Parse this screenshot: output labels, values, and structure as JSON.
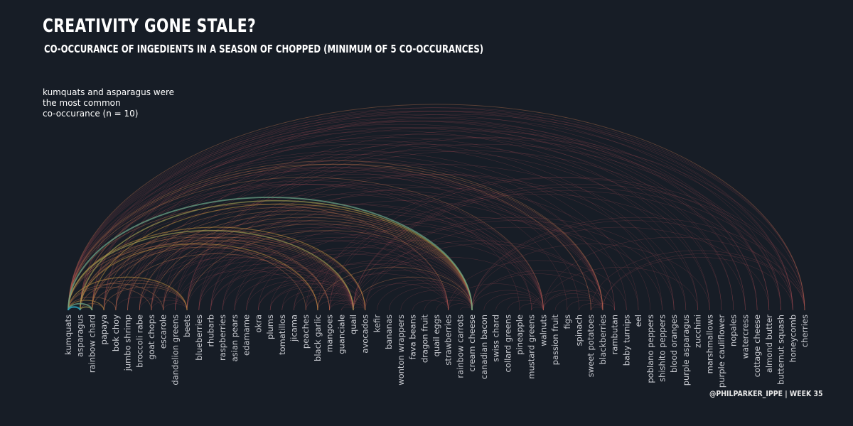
{
  "title": "CREATIVITY GONE STALE?",
  "subtitle": "CO-OCCURANCE OF INGEDIENTS IN A SEASON OF CHOPPED (MINIMUM OF 5 CO-OCCURANCES)",
  "annotation": [
    "kumquats and asparagus were",
    "the most common",
    "co-occurance (n = 10)"
  ],
  "credit": "@PHILPARKER_IPPE  |  WEEK 35",
  "colors": {
    "background": "#171d26",
    "arc_low": "#b24c57",
    "arc_mid": "#c8a23a",
    "arc_high": "#2aa0b8"
  },
  "nodes": [
    "kumquats",
    "asparagus",
    "rainbow chard",
    "papaya",
    "bok choy",
    "jumbo shrimp",
    "broccoli rabe",
    "goat chops",
    "escarole",
    "dandelion greens",
    "beets",
    "blueberries",
    "rhubarb",
    "raspberries",
    "asian pears",
    "edamame",
    "okra",
    "plums",
    "tomatillos",
    "jicama",
    "peaches",
    "black garlic",
    "mangoes",
    "guanciale",
    "quail",
    "avocados",
    "kefir",
    "bananas",
    "wonton wrappers",
    "fava beans",
    "dragon fruit",
    "quail eggs",
    "strawberries",
    "rainbow carrots",
    "cream cheese",
    "canadian bacon",
    "swiss chard",
    "collard greens",
    "pineapple",
    "mustard greens",
    "walnuts",
    "passion fruit",
    "figs",
    "spinach",
    "sweet potatoes",
    "blackberries",
    "rambutan",
    "baby turnips",
    "eel",
    "poblano peppers",
    "shishito peppers",
    "blood oranges",
    "purple asparagus",
    "zucchini",
    "marshmallows",
    "purple cauliflower",
    "nopales",
    "watercress",
    "cottage cheese",
    "almond butter",
    "butternut squash",
    "honeycomb",
    "cherries"
  ],
  "links": [
    {
      "from": "kumquats",
      "to": "asparagus",
      "n": 10
    },
    {
      "from": "kumquats",
      "to": "rainbow chard",
      "n": 9
    },
    {
      "from": "kumquats",
      "to": "cream cheese",
      "n": 9
    },
    {
      "from": "asparagus",
      "to": "cream cheese",
      "n": 8
    },
    {
      "from": "kumquats",
      "to": "quail",
      "n": 8
    },
    {
      "from": "asparagus",
      "to": "rainbow chard",
      "n": 8
    },
    {
      "from": "kumquats",
      "to": "papaya",
      "n": 7
    },
    {
      "from": "kumquats",
      "to": "avocados",
      "n": 7
    },
    {
      "from": "asparagus",
      "to": "black garlic",
      "n": 7
    },
    {
      "from": "rainbow chard",
      "to": "cream cheese",
      "n": 7
    },
    {
      "from": "kumquats",
      "to": "beets",
      "n": 7
    },
    {
      "from": "kumquats",
      "to": "sweet potatoes",
      "n": 6
    },
    {
      "from": "kumquats",
      "to": "blackberries",
      "n": 6
    },
    {
      "from": "kumquats",
      "to": "cherries",
      "n": 6
    },
    {
      "from": "kumquats",
      "to": "honeycomb",
      "n": 5
    },
    {
      "from": "kumquats",
      "to": "butternut squash",
      "n": 5
    },
    {
      "from": "kumquats",
      "to": "almond butter",
      "n": 5
    },
    {
      "from": "kumquats",
      "to": "cottage cheese",
      "n": 5
    },
    {
      "from": "kumquats",
      "to": "watercress",
      "n": 5
    },
    {
      "from": "kumquats",
      "to": "marshmallows",
      "n": 5
    },
    {
      "from": "kumquats",
      "to": "rambutan",
      "n": 5
    },
    {
      "from": "kumquats",
      "to": "walnuts",
      "n": 6
    },
    {
      "from": "kumquats",
      "to": "strawberries",
      "n": 6
    },
    {
      "from": "kumquats",
      "to": "mangoes",
      "n": 6
    },
    {
      "from": "kumquats",
      "to": "peaches",
      "n": 6
    },
    {
      "from": "kumquats",
      "to": "escarole",
      "n": 6
    },
    {
      "from": "kumquats",
      "to": "bok choy",
      "n": 6
    },
    {
      "from": "kumquats",
      "to": "goat chops",
      "n": 6
    },
    {
      "from": "kumquats",
      "to": "pineapple",
      "n": 5
    },
    {
      "from": "kumquats",
      "to": "spinach",
      "n": 5
    },
    {
      "from": "kumquats",
      "to": "figs",
      "n": 5
    },
    {
      "from": "kumquats",
      "to": "blood oranges",
      "n": 5
    },
    {
      "from": "kumquats",
      "to": "eel",
      "n": 5
    },
    {
      "from": "asparagus",
      "to": "blackberries",
      "n": 6
    },
    {
      "from": "asparagus",
      "to": "honeycomb",
      "n": 5
    },
    {
      "from": "asparagus",
      "to": "cherries",
      "n": 5
    },
    {
      "from": "asparagus",
      "to": "sweet potatoes",
      "n": 5
    },
    {
      "from": "asparagus",
      "to": "walnuts",
      "n": 5
    },
    {
      "from": "asparagus",
      "to": "mustard greens",
      "n": 5
    },
    {
      "from": "asparagus",
      "to": "quail",
      "n": 6
    },
    {
      "from": "asparagus",
      "to": "avocados",
      "n": 6
    },
    {
      "from": "asparagus",
      "to": "mangoes",
      "n": 6
    },
    {
      "from": "asparagus",
      "to": "beets",
      "n": 6
    },
    {
      "from": "asparagus",
      "to": "papaya",
      "n": 6
    },
    {
      "from": "asparagus",
      "to": "strawberries",
      "n": 5
    },
    {
      "from": "asparagus",
      "to": "rambutan",
      "n": 5
    },
    {
      "from": "asparagus",
      "to": "zucchini",
      "n": 5
    },
    {
      "from": "rainbow chard",
      "to": "quail",
      "n": 6
    },
    {
      "from": "rainbow chard",
      "to": "black garlic",
      "n": 6
    },
    {
      "from": "rainbow chard",
      "to": "blackberries",
      "n": 5
    },
    {
      "from": "rainbow chard",
      "to": "walnuts",
      "n": 5
    },
    {
      "from": "rainbow chard",
      "to": "cherries",
      "n": 5
    },
    {
      "from": "rainbow chard",
      "to": "beets",
      "n": 6
    },
    {
      "from": "rainbow chard",
      "to": "mangoes",
      "n": 5
    },
    {
      "from": "rainbow chard",
      "to": "avocados",
      "n": 5
    },
    {
      "from": "papaya",
      "to": "cream cheese",
      "n": 6
    },
    {
      "from": "papaya",
      "to": "quail",
      "n": 6
    },
    {
      "from": "papaya",
      "to": "blackberries",
      "n": 5
    },
    {
      "from": "papaya",
      "to": "beets",
      "n": 6
    },
    {
      "from": "papaya",
      "to": "avocados",
      "n": 5
    },
    {
      "from": "papaya",
      "to": "honeycomb",
      "n": 5
    },
    {
      "from": "bok choy",
      "to": "cream cheese",
      "n": 6
    },
    {
      "from": "bok choy",
      "to": "avocados",
      "n": 5
    },
    {
      "from": "bok choy",
      "to": "black garlic",
      "n": 6
    },
    {
      "from": "bok choy",
      "to": "quail",
      "n": 5
    },
    {
      "from": "bok choy",
      "to": "blackberries",
      "n": 5
    },
    {
      "from": "bok choy",
      "to": "escarole",
      "n": 5
    },
    {
      "from": "jumbo shrimp",
      "to": "cream cheese",
      "n": 6
    },
    {
      "from": "jumbo shrimp",
      "to": "quail",
      "n": 5
    },
    {
      "from": "jumbo shrimp",
      "to": "strawberries",
      "n": 5
    },
    {
      "from": "jumbo shrimp",
      "to": "walnuts",
      "n": 5
    },
    {
      "from": "jumbo shrimp",
      "to": "blackberries",
      "n": 5
    },
    {
      "from": "broccoli rabe",
      "to": "cream cheese",
      "n": 6
    },
    {
      "from": "broccoli rabe",
      "to": "strawberries",
      "n": 5
    },
    {
      "from": "broccoli rabe",
      "to": "quail",
      "n": 5
    },
    {
      "from": "broccoli rabe",
      "to": "mangoes",
      "n": 5
    },
    {
      "from": "broccoli rabe",
      "to": "beets",
      "n": 5
    },
    {
      "from": "goat chops",
      "to": "cream cheese",
      "n": 6
    },
    {
      "from": "goat chops",
      "to": "quail",
      "n": 5
    },
    {
      "from": "goat chops",
      "to": "blackberries",
      "n": 5
    },
    {
      "from": "goat chops",
      "to": "mustard greens",
      "n": 5
    },
    {
      "from": "goat chops",
      "to": "beets",
      "n": 5
    },
    {
      "from": "escarole",
      "to": "cream cheese",
      "n": 6
    },
    {
      "from": "escarole",
      "to": "quail",
      "n": 5
    },
    {
      "from": "escarole",
      "to": "strawberries",
      "n": 5
    },
    {
      "from": "escarole",
      "to": "walnuts",
      "n": 5
    },
    {
      "from": "escarole",
      "to": "beets",
      "n": 5
    },
    {
      "from": "dandelion greens",
      "to": "quail",
      "n": 5
    },
    {
      "from": "dandelion greens",
      "to": "cream cheese",
      "n": 5
    },
    {
      "from": "dandelion greens",
      "to": "black garlic",
      "n": 5
    },
    {
      "from": "dandelion greens",
      "to": "blackberries",
      "n": 5
    },
    {
      "from": "beets",
      "to": "cream cheese",
      "n": 6
    },
    {
      "from": "beets",
      "to": "quail",
      "n": 5
    },
    {
      "from": "beets",
      "to": "walnuts",
      "n": 5
    },
    {
      "from": "beets",
      "to": "blackberries",
      "n": 5
    },
    {
      "from": "blueberries",
      "to": "quail",
      "n": 5
    },
    {
      "from": "blueberries",
      "to": "strawberries",
      "n": 5
    },
    {
      "from": "blueberries",
      "to": "walnuts",
      "n": 5
    },
    {
      "from": "blueberries",
      "to": "cream cheese",
      "n": 5
    },
    {
      "from": "rhubarb",
      "to": "cream cheese",
      "n": 5
    },
    {
      "from": "rhubarb",
      "to": "quail",
      "n": 5
    },
    {
      "from": "rhubarb",
      "to": "blackberries",
      "n": 5
    },
    {
      "from": "rhubarb",
      "to": "avocados",
      "n": 5
    },
    {
      "from": "raspberries",
      "to": "quail",
      "n": 5
    },
    {
      "from": "raspberries",
      "to": "walnuts",
      "n": 5
    },
    {
      "from": "raspberries",
      "to": "cream cheese",
      "n": 5
    },
    {
      "from": "asian pears",
      "to": "quail",
      "n": 5
    },
    {
      "from": "asian pears",
      "to": "strawberries",
      "n": 5
    },
    {
      "from": "asian pears",
      "to": "walnuts",
      "n": 5
    },
    {
      "from": "edamame",
      "to": "quail",
      "n": 5
    },
    {
      "from": "edamame",
      "to": "strawberries",
      "n": 5
    },
    {
      "from": "edamame",
      "to": "cream cheese",
      "n": 5
    },
    {
      "from": "okra",
      "to": "quail",
      "n": 5
    },
    {
      "from": "okra",
      "to": "walnuts",
      "n": 5
    },
    {
      "from": "okra",
      "to": "avocados",
      "n": 5
    },
    {
      "from": "plums",
      "to": "quail",
      "n": 5
    },
    {
      "from": "plums",
      "to": "cream cheese",
      "n": 5
    },
    {
      "from": "plums",
      "to": "avocados",
      "n": 5
    },
    {
      "from": "tomatillos",
      "to": "strawberries",
      "n": 5
    },
    {
      "from": "tomatillos",
      "to": "quail",
      "n": 5
    },
    {
      "from": "jicama",
      "to": "quail",
      "n": 5
    },
    {
      "from": "jicama",
      "to": "walnuts",
      "n": 5
    },
    {
      "from": "jicama",
      "to": "cream cheese",
      "n": 5
    },
    {
      "from": "peaches",
      "to": "quail",
      "n": 5
    },
    {
      "from": "peaches",
      "to": "cream cheese",
      "n": 5
    },
    {
      "from": "peaches",
      "to": "avocados",
      "n": 5
    },
    {
      "from": "black garlic",
      "to": "cream cheese",
      "n": 6
    },
    {
      "from": "black garlic",
      "to": "quail",
      "n": 5
    },
    {
      "from": "black garlic",
      "to": "strawberries",
      "n": 5
    },
    {
      "from": "mangoes",
      "to": "quail",
      "n": 5
    },
    {
      "from": "mangoes",
      "to": "avocados",
      "n": 5
    },
    {
      "from": "mangoes",
      "to": "cream cheese",
      "n": 5
    },
    {
      "from": "guanciale",
      "to": "quail",
      "n": 5
    },
    {
      "from": "guanciale",
      "to": "avocados",
      "n": 5
    },
    {
      "from": "quail",
      "to": "cream cheese",
      "n": 6
    },
    {
      "from": "quail",
      "to": "avocados",
      "n": 5
    },
    {
      "from": "quail",
      "to": "strawberries",
      "n": 5
    },
    {
      "from": "quail",
      "to": "walnuts",
      "n": 5
    },
    {
      "from": "quail",
      "to": "blackberries",
      "n": 5
    },
    {
      "from": "avocados",
      "to": "cream cheese",
      "n": 5
    },
    {
      "from": "avocados",
      "to": "blackberries",
      "n": 5
    },
    {
      "from": "kefir",
      "to": "cream cheese",
      "n": 5
    },
    {
      "from": "bananas",
      "to": "cream cheese",
      "n": 5
    },
    {
      "from": "wonton wrappers",
      "to": "cream cheese",
      "n": 5
    },
    {
      "from": "fava beans",
      "to": "strawberries",
      "n": 5
    },
    {
      "from": "dragon fruit",
      "to": "cream cheese",
      "n": 5
    },
    {
      "from": "quail eggs",
      "to": "cream cheese",
      "n": 5
    },
    {
      "from": "strawberries",
      "to": "cream cheese",
      "n": 5
    },
    {
      "from": "strawberries",
      "to": "walnuts",
      "n": 5
    },
    {
      "from": "rainbow carrots",
      "to": "cream cheese",
      "n": 5
    },
    {
      "from": "cream cheese",
      "to": "walnuts",
      "n": 5
    },
    {
      "from": "cream cheese",
      "to": "blackberries",
      "n": 5
    },
    {
      "from": "canadian bacon",
      "to": "walnuts",
      "n": 5
    },
    {
      "from": "swiss chard",
      "to": "walnuts",
      "n": 5
    },
    {
      "from": "collard greens",
      "to": "walnuts",
      "n": 5
    },
    {
      "from": "pineapple",
      "to": "walnuts",
      "n": 5
    },
    {
      "from": "mustard greens",
      "to": "walnuts",
      "n": 5
    },
    {
      "from": "mustard greens",
      "to": "blackberries",
      "n": 5
    },
    {
      "from": "walnuts",
      "to": "blackberries",
      "n": 5
    },
    {
      "from": "passion fruit",
      "to": "blackberries",
      "n": 5
    },
    {
      "from": "figs",
      "to": "blackberries",
      "n": 5
    },
    {
      "from": "spinach",
      "to": "blackberries",
      "n": 5
    },
    {
      "from": "sweet potatoes",
      "to": "blackberries",
      "n": 5
    },
    {
      "from": "sweet potatoes",
      "to": "cherries",
      "n": 5
    },
    {
      "from": "walnuts",
      "to": "cherries",
      "n": 5
    },
    {
      "from": "blackberries",
      "to": "cherries",
      "n": 5
    },
    {
      "from": "mangoes",
      "to": "cherries",
      "n": 5
    },
    {
      "from": "quail",
      "to": "cherries",
      "n": 5
    },
    {
      "from": "cream cheese",
      "to": "cherries",
      "n": 5
    },
    {
      "from": "beets",
      "to": "cherries",
      "n": 5
    },
    {
      "from": "papaya",
      "to": "cherries",
      "n": 5
    },
    {
      "from": "goat chops",
      "to": "honeycomb",
      "n": 5
    },
    {
      "from": "black garlic",
      "to": "honeycomb",
      "n": 5
    },
    {
      "from": "quail",
      "to": "honeycomb",
      "n": 5
    },
    {
      "from": "cream cheese",
      "to": "honeycomb",
      "n": 5
    },
    {
      "from": "escarole",
      "to": "butternut squash",
      "n": 5
    },
    {
      "from": "beets",
      "to": "butternut squash",
      "n": 5
    },
    {
      "from": "quail",
      "to": "butternut squash",
      "n": 5
    },
    {
      "from": "rainbow chard",
      "to": "almond butter",
      "n": 5
    },
    {
      "from": "bok choy",
      "to": "almond butter",
      "n": 5
    },
    {
      "from": "cream cheese",
      "to": "almond butter",
      "n": 5
    },
    {
      "from": "asparagus",
      "to": "cottage cheese",
      "n": 5
    },
    {
      "from": "beets",
      "to": "cottage cheese",
      "n": 5
    },
    {
      "from": "mangoes",
      "to": "watercress",
      "n": 5
    },
    {
      "from": "rainbow chard",
      "to": "watercress",
      "n": 5
    },
    {
      "from": "papaya",
      "to": "nopales",
      "n": 5
    },
    {
      "from": "jumbo shrimp",
      "to": "purple cauliflower",
      "n": 5
    },
    {
      "from": "broccoli rabe",
      "to": "marshmallows",
      "n": 5
    },
    {
      "from": "dandelion greens",
      "to": "zucchini",
      "n": 5
    },
    {
      "from": "blueberries",
      "to": "purple asparagus",
      "n": 5
    },
    {
      "from": "quail",
      "to": "blood oranges",
      "n": 5
    },
    {
      "from": "avocados",
      "to": "shishito peppers",
      "n": 5
    },
    {
      "from": "rhubarb",
      "to": "poblano peppers",
      "n": 5
    },
    {
      "from": "peaches",
      "to": "eel",
      "n": 5
    },
    {
      "from": "strawberries",
      "to": "baby turnips",
      "n": 5
    },
    {
      "from": "cream cheese",
      "to": "rambutan",
      "n": 5
    },
    {
      "from": "walnuts",
      "to": "rambutan",
      "n": 5
    },
    {
      "from": "sweet potatoes",
      "to": "rambutan",
      "n": 5
    },
    {
      "from": "blackberries",
      "to": "honeycomb",
      "n": 5
    },
    {
      "from": "walnuts",
      "to": "zucchini",
      "n": 5
    },
    {
      "from": "cream cheese",
      "to": "marshmallows",
      "n": 5
    },
    {
      "from": "quail",
      "to": "purple asparagus",
      "n": 5
    },
    {
      "from": "beets",
      "to": "blood oranges",
      "n": 5
    },
    {
      "from": "kumquats",
      "to": "nopales",
      "n": 5
    },
    {
      "from": "kumquats",
      "to": "purple cauliflower",
      "n": 5
    },
    {
      "from": "kumquats",
      "to": "shishito peppers",
      "n": 5
    },
    {
      "from": "kumquats",
      "to": "baby turnips",
      "n": 5
    }
  ]
}
